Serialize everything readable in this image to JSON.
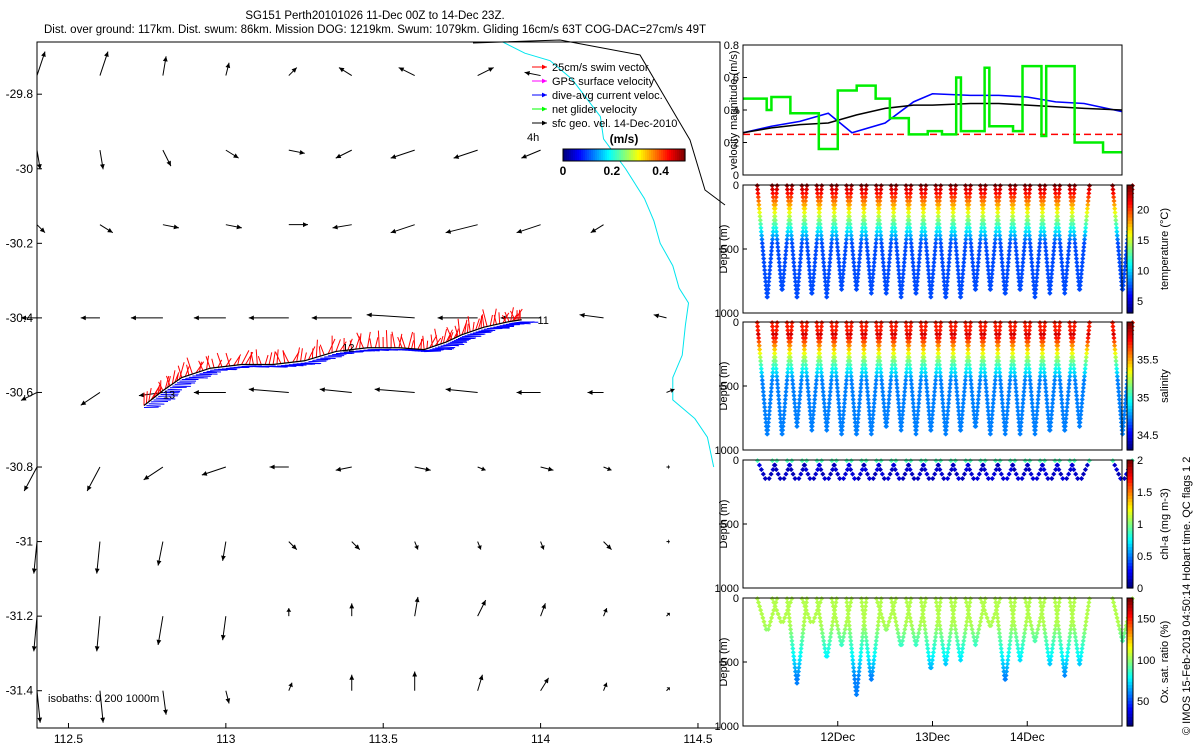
{
  "header": {
    "title_line1": "SG151 Perth20101026 11-Dec 00Z to 14-Dec 23Z.",
    "title_line2": "Dist. over ground: 117km. Dist. swum: 86km. Mission DOG: 1219km. Swum: 1079km. Gliding 16cm/s 63T COG-DAC=27cm/s 49T"
  },
  "side_label": "© IMOS 15-Feb-2019 04:50:14 Hobart time. QC flags 1  2",
  "colors": {
    "swim_vector": "#ff0000",
    "gps_surface_velocity": "#ff00ff",
    "dive_avg_current": "#0000ff",
    "net_glider_velocity": "#00ff00",
    "sfc_geo_vel": "#000000",
    "isobath": "#00e5ee"
  },
  "chart_data": [
    {
      "type": "scatter",
      "name": "map",
      "xlim": [
        112.4,
        114.57
      ],
      "ylim": [
        -31.5,
        -29.66
      ],
      "x_ticks": [
        112.5,
        113,
        113.5,
        114,
        114.5
      ],
      "x_tick_labels": [
        "112.5",
        "113",
        "113.5",
        "114",
        "114.5"
      ],
      "y_ticks": [
        -29.8,
        -30,
        -30.2,
        -30.4,
        -30.6,
        -30.8,
        -31,
        -31.2,
        -31.4
      ],
      "y_tick_labels": [
        "-29.8",
        "-30",
        "-30.2",
        "-30.4",
        "-30.6",
        "-30.8",
        "-31",
        "-31.2",
        "-31.4"
      ],
      "legend": {
        "position": "top-right",
        "entries": [
          "25cm/s swim vector",
          "GPS surface velocity",
          "dive-avg current veloc.",
          "net glider velocity",
          "sfc geo. vel. 14-Dec-2010"
        ],
        "scale_label": "4h"
      },
      "colorbar": {
        "title": "(m/s)",
        "tick_labels": [
          "0",
          "0.2",
          "0.4"
        ],
        "ticks": [
          0,
          0.2,
          0.4
        ],
        "range": [
          0,
          0.5
        ]
      },
      "isobaths_label": "isobaths: 0   200  1000m",
      "track_labels": [
        {
          "text": "11",
          "x": 113.99,
          "y": -30.405
        },
        {
          "text": "13",
          "x": 112.8,
          "y": -30.605
        },
        {
          "text": "12",
          "x": 113.37,
          "y": -30.48
        }
      ],
      "track": [
        [
          112.74,
          -30.635
        ],
        [
          112.8,
          -30.595
        ],
        [
          112.86,
          -30.56
        ],
        [
          112.95,
          -30.535
        ],
        [
          113.05,
          -30.525
        ],
        [
          113.15,
          -30.525
        ],
        [
          113.25,
          -30.515
        ],
        [
          113.35,
          -30.49
        ],
        [
          113.45,
          -30.48
        ],
        [
          113.55,
          -30.48
        ],
        [
          113.63,
          -30.485
        ],
        [
          113.7,
          -30.465
        ],
        [
          113.75,
          -30.445
        ],
        [
          113.82,
          -30.425
        ],
        [
          113.9,
          -30.41
        ],
        [
          113.94,
          -30.405
        ]
      ],
      "geo_vectors": {
        "lons": [
          112.4,
          112.6,
          112.8,
          113.0,
          113.2,
          113.4,
          113.6,
          113.8,
          114.0,
          114.2,
          114.4
        ],
        "lats": [
          -29.75,
          -29.95,
          -30.15,
          -30.4,
          -30.6,
          -30.8,
          -31.0,
          -31.2,
          -31.4
        ],
        "u": [
          [
            0.05,
            0.05,
            0.02,
            0.02,
            0.05,
            -0.08,
            -0.1,
            0.1,
            -0.1,
            0,
            0
          ],
          [
            0.02,
            0.02,
            0.05,
            0.08,
            0.1,
            -0.1,
            -0.15,
            -0.15,
            -0.12,
            -0.1,
            0
          ],
          [
            0.05,
            0.08,
            0.1,
            0.1,
            0.12,
            -0.12,
            -0.15,
            -0.2,
            -0.15,
            -0.08,
            0
          ],
          [
            -0.1,
            -0.12,
            -0.2,
            -0.2,
            -0.25,
            -0.25,
            -0.3,
            -0.25,
            -0.25,
            -0.15,
            -0.08
          ],
          [
            -0.1,
            -0.12,
            -0.15,
            -0.2,
            -0.25,
            -0.2,
            -0.25,
            -0.2,
            -0.15,
            -0.1,
            0.05
          ],
          [
            -0.08,
            -0.08,
            -0.12,
            -0.15,
            -0.12,
            -0.1,
            0.1,
            0.05,
            0.08,
            0.05,
            0.02
          ],
          [
            -0.02,
            -0.02,
            -0.03,
            -0.02,
            0.05,
            0.05,
            0.02,
            0.02,
            0.02,
            0.05,
            0.02
          ],
          [
            -0.02,
            -0.02,
            -0.03,
            -0.02,
            0,
            0,
            0.02,
            0.05,
            0.03,
            0.02,
            0.02
          ],
          [
            0.02,
            0.02,
            0.02,
            0.02,
            0.02,
            0,
            0,
            0.03,
            0.05,
            0.02,
            0.02
          ]
        ],
        "v": [
          [
            0.15,
            0.15,
            0.12,
            0.08,
            0.05,
            0.05,
            0.05,
            0.05,
            0.02,
            0,
            0
          ],
          [
            -0.12,
            -0.12,
            -0.1,
            -0.05,
            -0.02,
            -0.05,
            -0.05,
            -0.05,
            -0.05,
            -0.05,
            0
          ],
          [
            -0.05,
            -0.05,
            -0.02,
            -0.02,
            0,
            -0.02,
            -0.05,
            -0.05,
            -0.05,
            -0.05,
            0
          ],
          [
            0,
            0,
            0,
            0,
            0,
            0,
            0.02,
            0,
            0,
            0.02,
            0.02
          ],
          [
            -0.05,
            -0.08,
            -0.02,
            0,
            0.02,
            0.02,
            0.02,
            0.02,
            0,
            0,
            0.02
          ],
          [
            -0.15,
            -0.15,
            -0.08,
            -0.05,
            0,
            -0.02,
            -0.02,
            -0.02,
            -0.02,
            -0.02,
            0
          ],
          [
            -0.2,
            -0.2,
            -0.15,
            -0.12,
            -0.05,
            -0.05,
            -0.05,
            -0.05,
            -0.05,
            -0.05,
            0
          ],
          [
            -0.22,
            -0.22,
            -0.18,
            -0.15,
            0.05,
            0.08,
            0.12,
            0.1,
            0.08,
            0.05,
            0.02
          ],
          [
            -0.2,
            -0.2,
            -0.15,
            -0.08,
            0.05,
            0.1,
            0.12,
            0.1,
            0.08,
            0.05,
            0.02
          ]
        ]
      }
    },
    {
      "type": "line",
      "name": "velocity",
      "ylabel": "velocity magnitude (m/s)",
      "xlim": [
        11.0,
        15.0
      ],
      "ylim": [
        0,
        0.8
      ],
      "y_ticks": [
        0,
        0.2,
        0.4,
        0.6,
        0.8
      ],
      "y_tick_labels": [
        "0",
        "0.2",
        "0.4",
        "0.6",
        "0.8"
      ],
      "series": [
        {
          "color": "#ff0000",
          "x": [
            11.0,
            15.0
          ],
          "y": [
            0.25,
            0.25
          ]
        },
        {
          "color": "#0000ff",
          "x": [
            11.0,
            11.3,
            11.6,
            11.9,
            12.15,
            12.5,
            12.8,
            13.0,
            13.4,
            13.7,
            14.0,
            14.3,
            14.6,
            15.0
          ],
          "y": [
            0.26,
            0.3,
            0.33,
            0.38,
            0.26,
            0.32,
            0.45,
            0.5,
            0.49,
            0.49,
            0.48,
            0.45,
            0.44,
            0.39
          ]
        },
        {
          "color": "#000000",
          "x": [
            11.0,
            11.3,
            11.6,
            11.9,
            12.2,
            12.5,
            12.8,
            13.0,
            13.4,
            13.7,
            14.0,
            14.3,
            14.6,
            15.0
          ],
          "y": [
            0.26,
            0.29,
            0.31,
            0.32,
            0.37,
            0.41,
            0.43,
            0.43,
            0.44,
            0.44,
            0.43,
            0.42,
            0.41,
            0.4
          ]
        },
        {
          "color": "#00ee00",
          "x": [
            11.0,
            11.25,
            11.25,
            11.3,
            11.3,
            11.5,
            11.5,
            11.8,
            11.8,
            12.0,
            12.0,
            12.2,
            12.2,
            12.4,
            12.4,
            12.55,
            12.55,
            12.75,
            12.75,
            12.95,
            12.95,
            13.1,
            13.1,
            13.25,
            13.25,
            13.3,
            13.3,
            13.55,
            13.55,
            13.6,
            13.6,
            13.85,
            13.85,
            13.95,
            13.95,
            14.15,
            14.15,
            14.2,
            14.2,
            14.5,
            14.5,
            14.8,
            14.8,
            15.0
          ],
          "y": [
            0.47,
            0.47,
            0.4,
            0.4,
            0.48,
            0.48,
            0.38,
            0.38,
            0.16,
            0.16,
            0.52,
            0.52,
            0.55,
            0.55,
            0.47,
            0.47,
            0.35,
            0.35,
            0.25,
            0.25,
            0.27,
            0.27,
            0.25,
            0.25,
            0.6,
            0.6,
            0.27,
            0.27,
            0.66,
            0.66,
            0.3,
            0.3,
            0.27,
            0.27,
            0.67,
            0.67,
            0.24,
            0.24,
            0.67,
            0.67,
            0.2,
            0.2,
            0.14,
            0.14
          ]
        }
      ]
    },
    {
      "type": "scatter",
      "name": "temperature",
      "ylabel": "Depth (m)",
      "colorbar_label": "temperature (°C)",
      "ylim": [
        0,
        1000
      ],
      "y_ticks": [
        0,
        500,
        1000
      ],
      "y_tick_labels": [
        "0",
        "500",
        "1000"
      ],
      "colorbar_ticks": [
        5,
        10,
        15,
        20
      ],
      "colorbar_tick_labels": [
        "5",
        "10",
        "15",
        "20"
      ],
      "colorbar_range": [
        3,
        24
      ]
    },
    {
      "type": "scatter",
      "name": "salinity",
      "ylabel": "Depth (m)",
      "colorbar_label": "salinity",
      "ylim": [
        0,
        1000
      ],
      "y_ticks": [
        0,
        500,
        1000
      ],
      "y_tick_labels": [
        "0",
        "500",
        "1000"
      ],
      "colorbar_ticks": [
        34.5,
        35,
        35.5
      ],
      "colorbar_tick_labels": [
        "34.5",
        "35",
        "35.5"
      ],
      "colorbar_range": [
        34.3,
        36.0
      ]
    },
    {
      "type": "scatter",
      "name": "chlorophyll",
      "ylabel": "Depth (m)",
      "colorbar_label": "chl-a (mg m-3)",
      "ylim": [
        0,
        1000
      ],
      "y_ticks": [
        0,
        500,
        1000
      ],
      "y_tick_labels": [
        "0",
        "500",
        "1000"
      ],
      "colorbar_ticks": [
        0,
        0.5,
        1,
        1.5,
        2
      ],
      "colorbar_tick_labels": [
        "0",
        "0.5",
        "1",
        "1.5",
        "2"
      ],
      "colorbar_range": [
        0,
        2
      ]
    },
    {
      "type": "scatter",
      "name": "oxygen",
      "ylabel": "Depth (m)",
      "colorbar_label": "Ox. sat. ratio (%)",
      "ylim": [
        0,
        1000
      ],
      "y_ticks": [
        0,
        500,
        1000
      ],
      "y_tick_labels": [
        "0",
        "500",
        "1000"
      ],
      "colorbar_ticks": [
        50,
        100,
        150
      ],
      "colorbar_tick_labels": [
        "50",
        "100",
        "150"
      ],
      "colorbar_range": [
        20,
        175
      ]
    }
  ],
  "time_axis": {
    "xlim": [
      11.0,
      15.0
    ],
    "ticks": [
      12,
      13,
      14
    ],
    "tick_labels": [
      "12Dec",
      "13Dec",
      "14Dec"
    ]
  }
}
